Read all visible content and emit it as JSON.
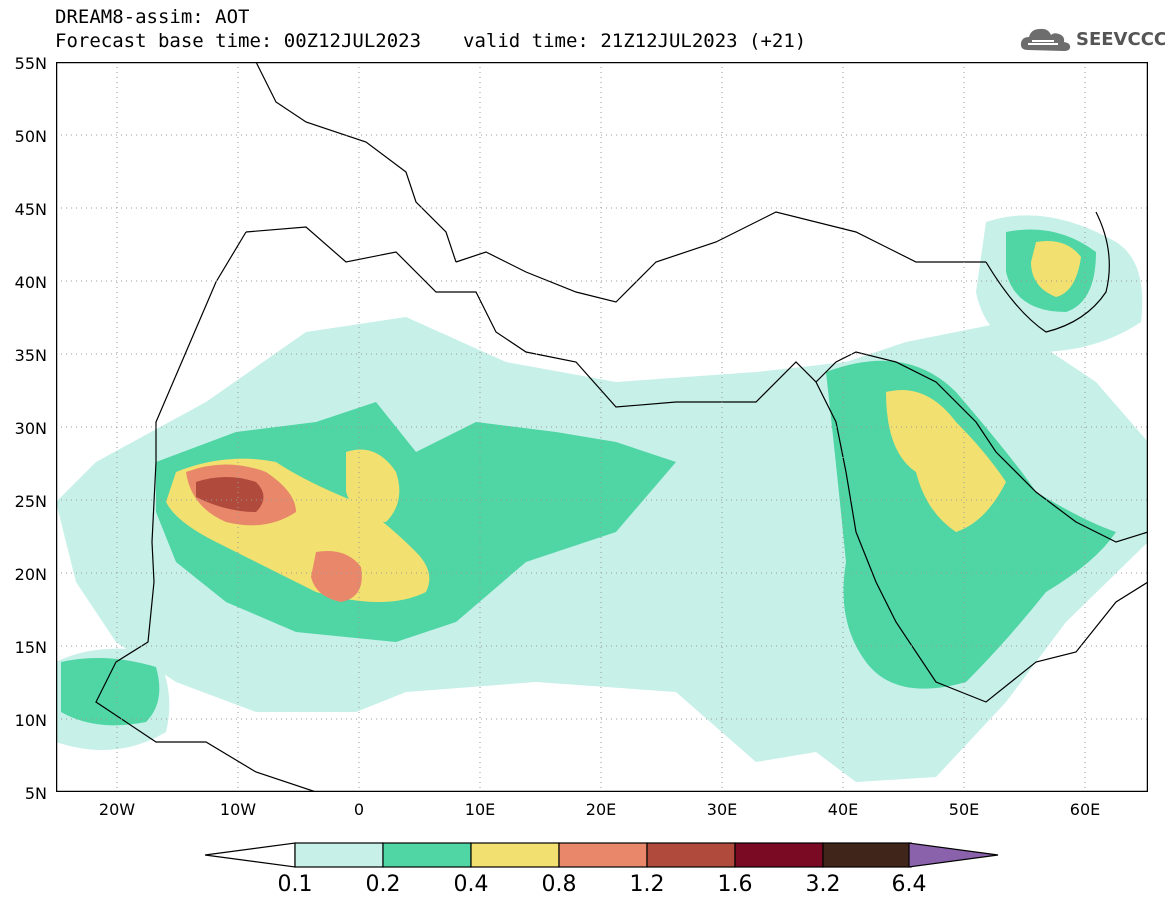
{
  "header": {
    "line1": "DREAM8-assim: AOT",
    "base_time": "Forecast base time: 00Z12JUL2023",
    "valid_time": "valid time: 21Z12JUL2023 (+21)"
  },
  "logo": {
    "text": "SEEVCCC",
    "icon": "cloud-icon"
  },
  "axes": {
    "lat_labels": [
      "55N",
      "50N",
      "45N",
      "40N",
      "35N",
      "30N",
      "25N",
      "20N",
      "15N",
      "10N",
      "5N"
    ],
    "lon_labels": [
      "20W",
      "10W",
      "0",
      "10E",
      "20E",
      "30E",
      "40E",
      "50E",
      "60E"
    ]
  },
  "colorbar": {
    "labels": [
      "0.1",
      "0.2",
      "0.4",
      "0.8",
      "1.2",
      "1.6",
      "3.2",
      "6.4"
    ],
    "colors": [
      "#c6f0e8",
      "#4fd6a4",
      "#f2e070",
      "#e8876a",
      "#b04a3c",
      "#7a0a24",
      "#40261a",
      "#8a62ac"
    ]
  },
  "colors": {
    "lowest": "#c6f0e8",
    "low": "#4fd6a4",
    "mid": "#f2e070",
    "high": "#e8876a",
    "very_high": "#b04a3c"
  }
}
